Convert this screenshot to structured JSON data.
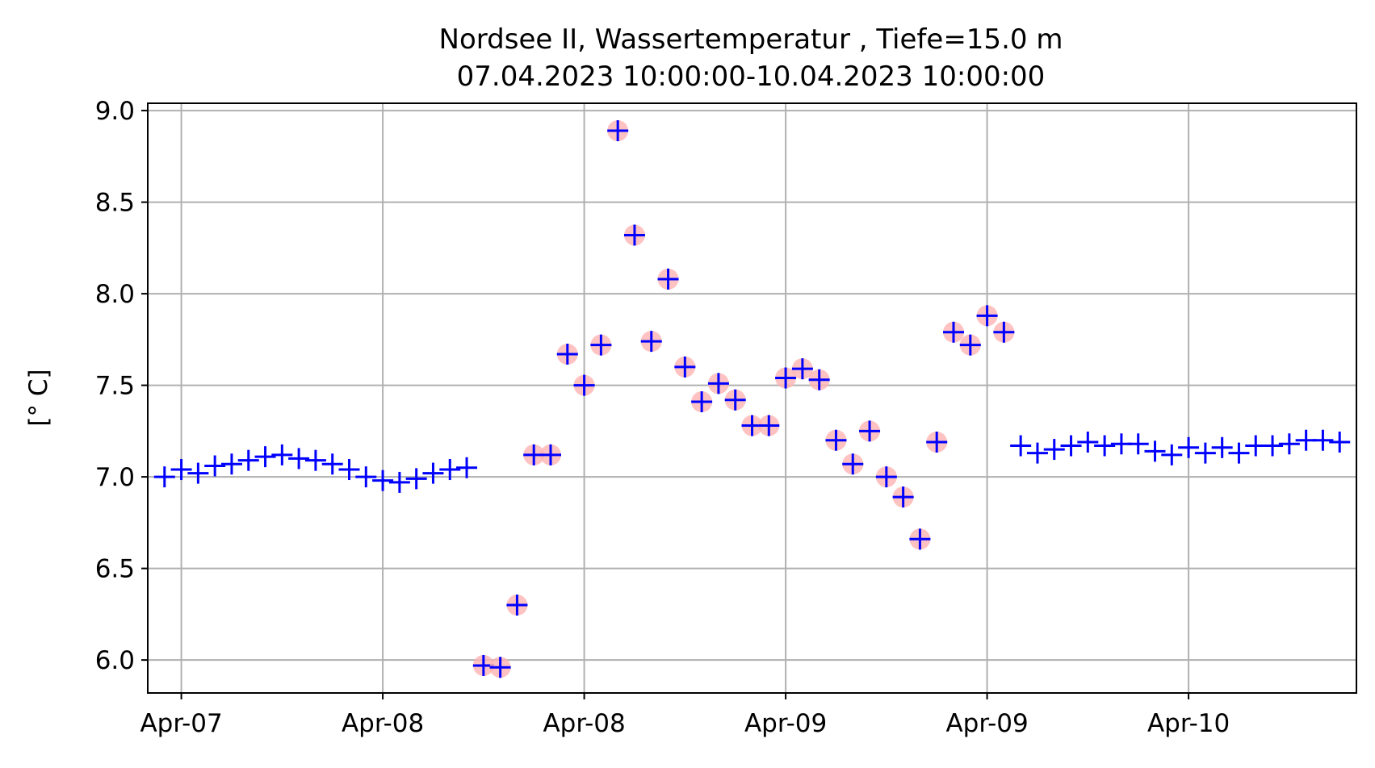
{
  "chart_data": {
    "type": "scatter",
    "title": "Nordsee II, Wassertemperatur , Tiefe=15.0 m",
    "subtitle": "07.04.2023 10:00:00-10.04.2023 10:00:00",
    "xlabel": "",
    "ylabel": "[° C]",
    "ylim": [
      5.82,
      9.04
    ],
    "xlim": [
      -1.0,
      71.0
    ],
    "x_unit": "hours from first plotted tick",
    "yticks": [
      6.0,
      6.5,
      7.0,
      7.5,
      8.0,
      8.5,
      9.0
    ],
    "ytick_labels": [
      "6.0",
      "6.5",
      "7.0",
      "7.5",
      "8.0",
      "8.5",
      "9.0"
    ],
    "xticks": [
      1,
      13,
      25,
      37,
      49,
      61
    ],
    "xtick_labels": [
      "Apr-07",
      "Apr-08",
      "Apr-08",
      "Apr-09",
      "Apr-09",
      "Apr-10"
    ],
    "grid": true,
    "marker": "+",
    "marker_color": "#0000ff",
    "flag_color": "#ffb3b3",
    "series": [
      {
        "x": [
          0,
          1,
          2,
          3,
          4,
          5,
          6,
          7,
          8,
          9,
          10,
          11,
          12,
          13,
          14,
          15,
          16,
          17,
          18,
          19,
          20,
          21,
          22,
          23,
          24,
          25,
          26,
          27,
          28,
          29,
          30,
          31,
          32,
          33,
          34,
          35,
          36,
          37,
          38,
          39,
          40,
          41,
          42,
          43,
          44,
          45,
          46,
          47,
          48,
          49,
          50,
          51,
          52,
          53,
          54,
          55,
          56,
          57,
          58,
          59,
          60,
          61,
          62,
          63,
          64,
          65,
          66,
          67,
          68,
          69,
          70
        ],
        "y": [
          7.0,
          7.04,
          7.02,
          7.06,
          7.07,
          7.09,
          7.11,
          7.12,
          7.1,
          7.09,
          7.07,
          7.04,
          7.0,
          6.98,
          6.97,
          6.99,
          7.02,
          7.04,
          7.05,
          5.97,
          5.96,
          6.3,
          7.12,
          7.12,
          7.67,
          7.5,
          7.72,
          8.89,
          8.32,
          7.74,
          8.08,
          7.6,
          7.41,
          7.51,
          7.42,
          7.28,
          7.28,
          7.54,
          7.59,
          7.53,
          7.2,
          7.07,
          7.25,
          7.0,
          6.89,
          6.66,
          7.19,
          7.79,
          7.72,
          7.88,
          7.79,
          7.17,
          7.13,
          7.15,
          7.17,
          7.19,
          7.17,
          7.18,
          7.18,
          7.14,
          7.12,
          7.16,
          7.13,
          7.16,
          7.13,
          7.17,
          7.17,
          7.18,
          7.2,
          7.2,
          7.19
        ],
        "flagged": [
          false,
          false,
          false,
          false,
          false,
          false,
          false,
          false,
          false,
          false,
          false,
          false,
          false,
          false,
          false,
          false,
          false,
          false,
          false,
          true,
          true,
          true,
          true,
          true,
          true,
          true,
          true,
          true,
          true,
          true,
          true,
          true,
          true,
          true,
          true,
          true,
          true,
          true,
          true,
          true,
          true,
          true,
          true,
          true,
          true,
          true,
          true,
          true,
          true,
          true,
          true,
          false,
          false,
          false,
          false,
          false,
          false,
          false,
          false,
          false,
          false,
          false,
          false,
          false,
          false,
          false,
          false,
          false,
          false,
          false,
          false
        ]
      }
    ]
  }
}
